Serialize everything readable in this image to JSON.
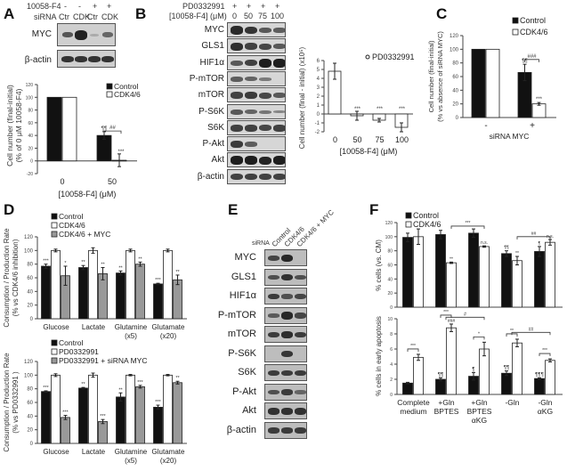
{
  "panels": {
    "A": {
      "letter": "A",
      "blot": {
        "row_headers": [
          "10058-F4",
          "siRNA"
        ],
        "treatment_10058F4": [
          "-",
          "-",
          "+",
          "+"
        ],
        "siRNA_lanes": [
          "Ctr",
          "CDK",
          "Ctr",
          "CDK"
        ],
        "bands": [
          "MYC",
          "β-actin"
        ]
      },
      "legend": [
        "Control",
        "CDK4/6"
      ],
      "ylabel": "Cell number (final-initial) (% of 0 μM 10058-F4)",
      "xlabel": "[10058-F4] (μM)",
      "sig": {
        "control_50": "¶¶",
        "cdk_50": "***",
        "bracket": "##"
      }
    },
    "B": {
      "letter": "B",
      "blot": {
        "row_headers": [
          "PD0332991",
          "[10058-F4] (μM)"
        ],
        "pd_lanes": [
          "+",
          "+",
          "+",
          "+"
        ],
        "dose_lanes": [
          "0",
          "50",
          "75",
          "100"
        ],
        "bands": [
          "MYC",
          "GLS1",
          "HIF1α",
          "P-mTOR",
          "mTOR",
          "P-S6K",
          "S6K",
          "P-Akt",
          "Akt",
          "β-actin"
        ]
      },
      "legend": [
        "PD0332991"
      ],
      "ylabel": "Cell number (final - initial) (x10⁵)",
      "xlabel": "[10058-F4] (μM)",
      "sig": [
        "",
        "***",
        "***",
        "***"
      ]
    },
    "C": {
      "letter": "C",
      "legend": [
        "Control",
        "CDK4/6"
      ],
      "ylabel": "Cell number (final-initial) (% vs absence of siRNA MYC)",
      "xlabel": "siRNA MYC",
      "sig": {
        "control_plus": "¶¶",
        "cdk_plus": "***",
        "bracket": "###"
      }
    },
    "D": {
      "letter": "D",
      "top": {
        "legend": [
          "Control",
          "CDK4/6",
          "CDK4/6 + MYC"
        ],
        "ylabel": "Consumption / Production Rate (% vs CDK4/6 inhibition)",
        "sig": [
          [
            "***",
            "",
            "*"
          ],
          [
            "**",
            "",
            "**"
          ],
          [
            "**",
            "",
            "**"
          ],
          [
            "***",
            "",
            "**"
          ]
        ]
      },
      "bottom": {
        "legend": [
          "Control",
          "PD0332991",
          "PD0332991 + siRNA MYC"
        ],
        "ylabel": "Consumption / Production Rate (% vs PD0332991 )",
        "sig": [
          [
            "***",
            "",
            "***"
          ],
          [
            "**",
            "",
            "***"
          ],
          [
            "**",
            "",
            "***"
          ],
          [
            "***",
            "",
            "**"
          ]
        ]
      }
    },
    "E": {
      "letter": "E",
      "row_header": "siRNA",
      "lanes": [
        "Control",
        "CDK4/6",
        "CDK4/6 + MYC"
      ],
      "bands": [
        "MYC",
        "GLS1",
        "HIF1α",
        "P-mTOR",
        "mTOR",
        "P-S6K",
        "S6K",
        "P-Akt",
        "Akt",
        "β-actin"
      ]
    },
    "F": {
      "letter": "F",
      "legend": [
        "Control",
        "CDK4/6"
      ],
      "top": {
        "ylabel": "% cells (vs. CM)",
        "sig_control": [
          "",
          "",
          "",
          "¶¶",
          "¶"
        ],
        "sig_cdk": [
          "",
          "**",
          "n.s.",
          "**",
          "n.s."
        ],
        "brackets": [
          "***",
          "##"
        ]
      },
      "bottom": {
        "ylabel": "% cells in early apoptosis",
        "sig_control": [
          "",
          "¶¶",
          "¶",
          "¶¶",
          "¶¶¶"
        ],
        "sig_cdk": [
          "",
          "###",
          "",
          "",
          ""
        ],
        "pair_sig": [
          "***",
          "***",
          "*",
          "**",
          "***"
        ],
        "brackets": [
          "#",
          "##"
        ]
      },
      "categories": [
        "Complete medium",
        "+Gln BPTES",
        "+Gln BPTES αKG",
        "-Gln",
        "-Gln αKG"
      ]
    }
  },
  "chart_data": [
    {
      "id": "A",
      "type": "bar",
      "categories": [
        "0",
        "50"
      ],
      "series": [
        {
          "name": "Control",
          "values": [
            100,
            40
          ],
          "errors": [
            0,
            6
          ]
        },
        {
          "name": "CDK4/6",
          "values": [
            100,
            1
          ],
          "errors": [
            0,
            10
          ]
        }
      ],
      "xlabel": "[10058-F4] (μM)",
      "ylabel": "Cell number (final-initial) (% of 0 μM 10058-F4)",
      "ylim": [
        -20,
        120
      ],
      "yticks": [
        -20,
        0,
        20,
        40,
        60,
        80,
        100,
        120
      ]
    },
    {
      "id": "B",
      "type": "bar",
      "categories": [
        "0",
        "50",
        "75",
        "100"
      ],
      "series": [
        {
          "name": "PD0332991",
          "values": [
            4.8,
            -0.2,
            -0.7,
            -1.5
          ],
          "errors": [
            0.9,
            0.5,
            0.2,
            0.5
          ]
        }
      ],
      "xlabel": "[10058-F4] (μM)",
      "ylabel": "Cell number (final - initial) (x10⁵)",
      "ylim": [
        -2,
        6
      ],
      "yticks": [
        -2,
        -1,
        0,
        1,
        2,
        3,
        4,
        5,
        6
      ]
    },
    {
      "id": "C",
      "type": "bar",
      "categories": [
        "-",
        "+"
      ],
      "series": [
        {
          "name": "Control",
          "values": [
            100,
            66
          ],
          "errors": [
            0,
            12
          ]
        },
        {
          "name": "CDK4/6",
          "values": [
            100,
            20
          ],
          "errors": [
            0,
            2
          ]
        }
      ],
      "xlabel": "siRNA MYC",
      "ylabel": "Cell number (final-initial) (% vs absence of siRNA MYC)",
      "ylim": [
        0,
        120
      ],
      "yticks": [
        0,
        20,
        40,
        60,
        80,
        100,
        120
      ]
    },
    {
      "id": "D-top",
      "type": "bar",
      "categories": [
        "Glucose",
        "Lactate",
        "Glutamine (x5)",
        "Glutamate (x20)"
      ],
      "series": [
        {
          "name": "Control",
          "values": [
            77,
            75,
            67,
            51
          ],
          "errors": [
            3,
            3,
            3,
            1
          ]
        },
        {
          "name": "CDK4/6",
          "values": [
            100,
            100,
            100,
            100
          ],
          "errors": [
            2,
            4,
            2,
            2
          ]
        },
        {
          "name": "CDK4/6 + MYC",
          "values": [
            63,
            66,
            80,
            57
          ],
          "errors": [
            14,
            9,
            3,
            7
          ]
        }
      ],
      "ylabel": "Consumption / Production Rate (% vs CDK4/6 inhibition)",
      "ylim": [
        0,
        120
      ],
      "yticks": [
        0,
        20,
        40,
        60,
        80,
        100,
        120
      ]
    },
    {
      "id": "D-bottom",
      "type": "bar",
      "categories": [
        "Glucose",
        "Lactate",
        "Glutamine (x5)",
        "Glutamate (x20)"
      ],
      "series": [
        {
          "name": "Control",
          "values": [
            76,
            81,
            68,
            53
          ],
          "errors": [
            1,
            1,
            6,
            3
          ]
        },
        {
          "name": "PD0332991",
          "values": [
            100,
            100,
            100,
            100
          ],
          "errors": [
            2,
            3,
            1,
            1
          ]
        },
        {
          "name": "PD0332991 + siRNA MYC",
          "values": [
            38,
            32,
            83,
            89
          ],
          "errors": [
            3,
            3,
            2,
            2
          ]
        }
      ],
      "ylabel": "Consumption / Production Rate (% vs PD0332991 )",
      "ylim": [
        0,
        120
      ],
      "yticks": [
        0,
        20,
        40,
        60,
        80,
        100,
        120
      ]
    },
    {
      "id": "F-top",
      "type": "bar",
      "categories": [
        "Complete medium",
        "+Gln BPTES",
        "+Gln BPTES αKG",
        "-Gln",
        "-Gln αKG"
      ],
      "series": [
        {
          "name": "Control",
          "values": [
            99,
            103,
            105,
            76,
            79
          ],
          "errors": [
            6,
            6,
            6,
            4,
            7
          ]
        },
        {
          "name": "CDK4/6",
          "values": [
            100,
            63,
            86,
            66,
            92
          ],
          "errors": [
            11,
            1,
            1,
            6,
            4
          ]
        }
      ],
      "ylabel": "% cells (vs. CM)",
      "ylim": [
        0,
        120
      ],
      "yticks": [
        0,
        20,
        40,
        60,
        80,
        100,
        120
      ]
    },
    {
      "id": "F-bottom",
      "type": "bar",
      "categories": [
        "Complete medium",
        "+Gln BPTES",
        "+Gln BPTES αKG",
        "-Gln",
        "-Gln αKG"
      ],
      "series": [
        {
          "name": "Control",
          "values": [
            1.5,
            2.0,
            2.4,
            2.8,
            2.1
          ],
          "errors": [
            0.1,
            0.2,
            0.5,
            0.3,
            0.1
          ]
        },
        {
          "name": "CDK4/6",
          "values": [
            4.9,
            8.8,
            6.0,
            6.8,
            4.5
          ],
          "errors": [
            0.4,
            0.5,
            0.9,
            0.5,
            0.2
          ]
        }
      ],
      "ylabel": "% cells in early apoptosis",
      "ylim": [
        0,
        10
      ],
      "yticks": [
        0,
        2,
        4,
        6,
        8,
        10
      ]
    }
  ]
}
